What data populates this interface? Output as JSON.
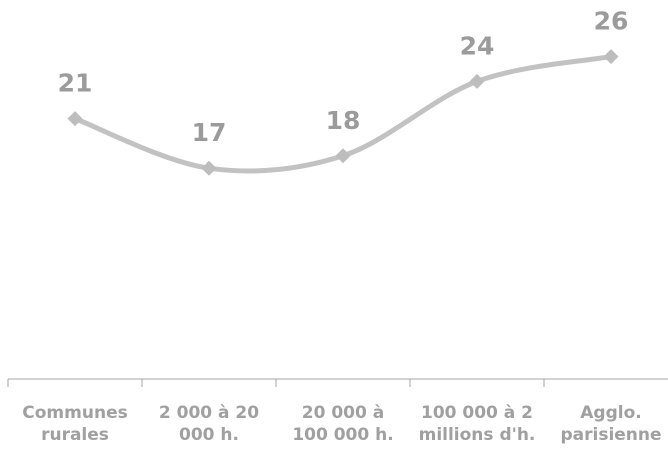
{
  "chart_data": {
    "type": "line",
    "categories": [
      [
        "Communes",
        "rurales"
      ],
      [
        "2 000 à 20",
        "000 h."
      ],
      [
        "20 000 à",
        "100 000 h."
      ],
      [
        "100 000 à 2",
        "millions d'h."
      ],
      [
        "Agglo.",
        "parisienne"
      ]
    ],
    "values": [
      21,
      17,
      18,
      24,
      26
    ],
    "data_labels": [
      "21",
      "17",
      "18",
      "24",
      "26"
    ],
    "title": "",
    "xlabel": "",
    "ylabel": "",
    "grid": false,
    "legend": "none",
    "colors": {
      "line": "#c2c2c2",
      "marker": "#bdbdbd",
      "axis": "#a6a6a6",
      "text": "#9b9b9b"
    }
  }
}
